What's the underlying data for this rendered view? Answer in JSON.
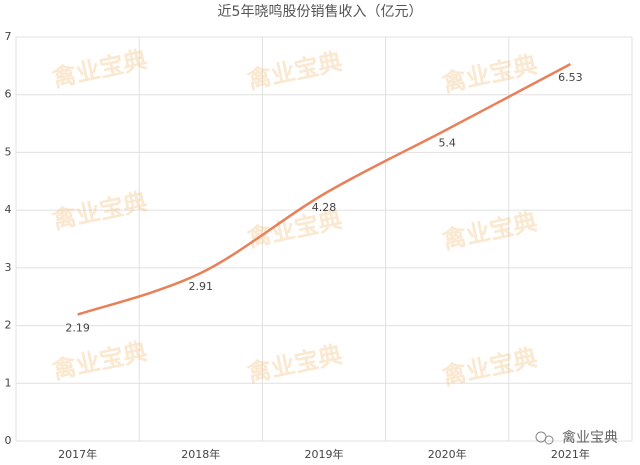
{
  "chart_data": {
    "type": "line",
    "title": "近5年晓鸣股份销售收入（亿元）",
    "categories": [
      "2017年",
      "2018年",
      "2019年",
      "2020年",
      "2021年"
    ],
    "values": [
      2.19,
      2.91,
      4.28,
      5.4,
      6.53
    ],
    "color": "#e8805a",
    "ylim": [
      0,
      7
    ],
    "yticks": [
      0,
      1,
      2,
      3,
      4,
      5,
      6,
      7
    ],
    "grid": true,
    "watermark": "禽业宝典"
  }
}
